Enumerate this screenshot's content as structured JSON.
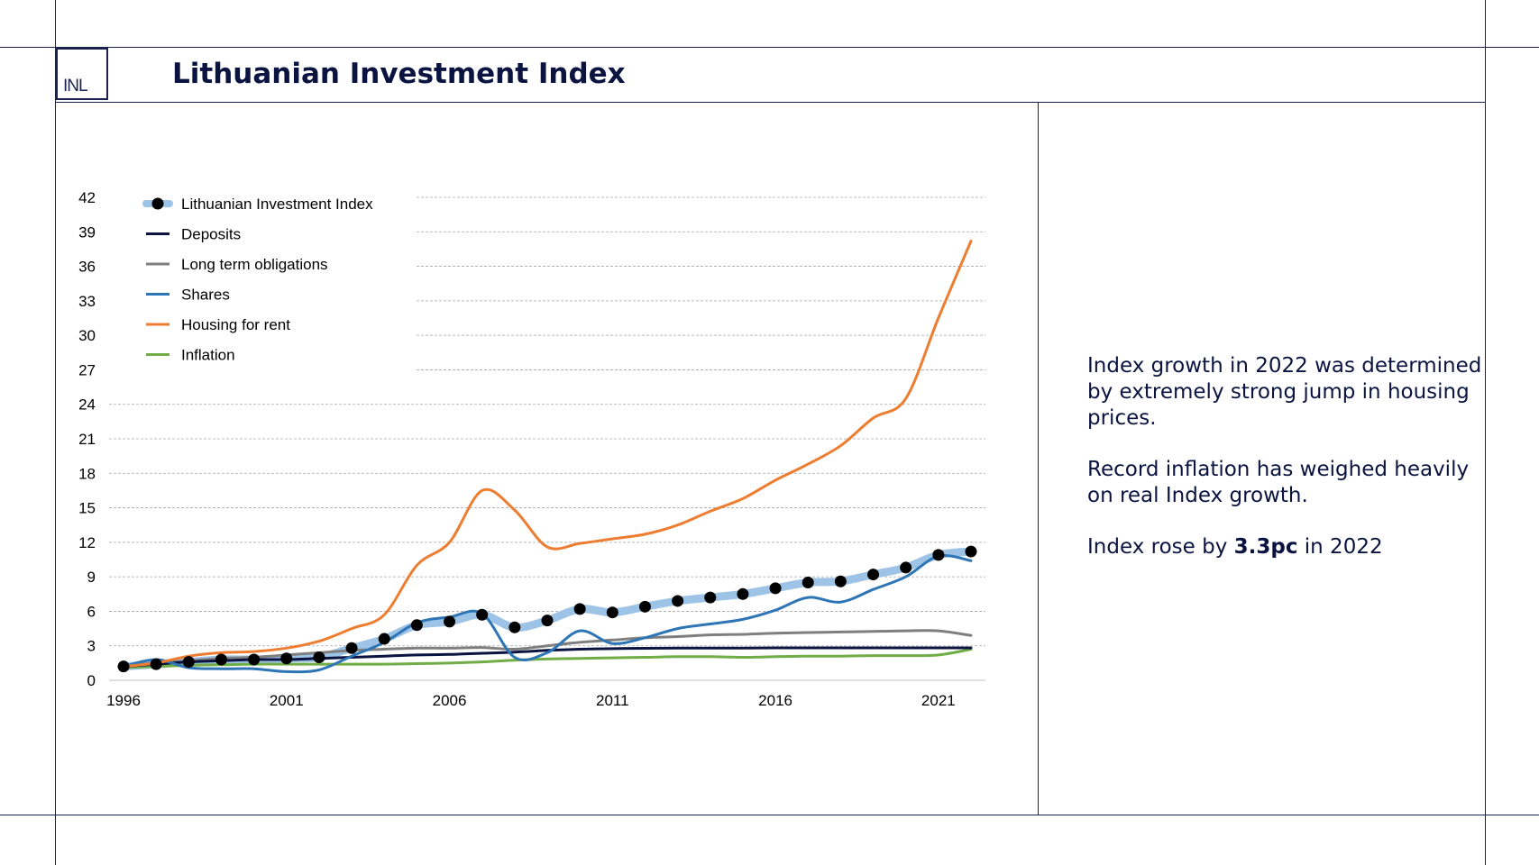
{
  "logo": {
    "text": "INL"
  },
  "title": "Lithuanian Investment Index",
  "side_text": {
    "p1": "Index growth in 2022 was determined by extremely strong jump in housing prices.",
    "p2": "Record inflation has weighed heavily on real Index growth.",
    "p3_pre": "Index rose by ",
    "p3_bold": "3.3pc",
    "p3_post": " in 2022"
  },
  "chart_data": {
    "type": "line",
    "title": "",
    "xlabel": "",
    "ylabel": "",
    "xlim": [
      1996,
      2022
    ],
    "ylim": [
      0,
      42
    ],
    "yticks": [
      0,
      3,
      6,
      9,
      12,
      15,
      18,
      21,
      24,
      27,
      30,
      33,
      36,
      39,
      42
    ],
    "xticks": [
      1996,
      2001,
      2006,
      2011,
      2016,
      2021
    ],
    "grid": "horizontal dashed",
    "legend": "top-left",
    "x": [
      1996,
      1997,
      1998,
      1999,
      2000,
      2001,
      2002,
      2003,
      2004,
      2005,
      2006,
      2007,
      2008,
      2009,
      2010,
      2011,
      2012,
      2013,
      2014,
      2015,
      2016,
      2017,
      2018,
      2019,
      2020,
      2021,
      2022
    ],
    "series": [
      {
        "name": "Lithuanian Investment Index",
        "color": "#000000",
        "band_color": "#9dc3e6",
        "style": "dots-on-band",
        "values": [
          1.2,
          1.4,
          1.6,
          1.8,
          1.8,
          1.9,
          2.0,
          2.8,
          3.6,
          4.8,
          5.1,
          5.7,
          4.6,
          5.2,
          6.2,
          5.9,
          6.4,
          6.9,
          7.2,
          7.5,
          8.0,
          8.5,
          8.6,
          9.2,
          9.8,
          10.9,
          11.2
        ]
      },
      {
        "name": "Deposits",
        "color": "#0b1340",
        "style": "line",
        "values": [
          1.2,
          1.4,
          1.6,
          1.7,
          1.8,
          1.8,
          1.9,
          2.0,
          2.1,
          2.2,
          2.25,
          2.35,
          2.45,
          2.6,
          2.7,
          2.75,
          2.78,
          2.8,
          2.8,
          2.8,
          2.82,
          2.82,
          2.82,
          2.82,
          2.82,
          2.82,
          2.82
        ]
      },
      {
        "name": "Long term obligations",
        "color": "#7f7f7f",
        "style": "line",
        "values": [
          1.3,
          1.5,
          1.7,
          1.9,
          2.0,
          2.2,
          2.4,
          2.6,
          2.7,
          2.8,
          2.8,
          2.85,
          2.7,
          3.0,
          3.3,
          3.5,
          3.7,
          3.8,
          3.95,
          4.0,
          4.1,
          4.15,
          4.2,
          4.25,
          4.3,
          4.3,
          3.9
        ]
      },
      {
        "name": "Shares",
        "color": "#2e75b6",
        "style": "line",
        "values": [
          1.2,
          1.8,
          1.1,
          1.0,
          1.0,
          0.75,
          0.9,
          2.1,
          3.3,
          5.0,
          5.5,
          5.8,
          2.0,
          2.4,
          4.3,
          3.2,
          3.7,
          4.5,
          4.9,
          5.3,
          6.1,
          7.2,
          6.8,
          7.9,
          9.0,
          10.8,
          10.4
        ]
      },
      {
        "name": "Housing for rent",
        "color": "#ed7d31",
        "style": "line",
        "values": [
          1.2,
          1.5,
          2.1,
          2.4,
          2.5,
          2.8,
          3.4,
          4.5,
          5.7,
          10.0,
          12.0,
          16.5,
          14.8,
          11.6,
          11.9,
          12.3,
          12.7,
          13.5,
          14.7,
          15.8,
          17.4,
          18.8,
          20.4,
          22.8,
          24.5,
          31.5,
          38.2
        ]
      },
      {
        "name": "Inflation",
        "color": "#70ad47",
        "style": "line",
        "values": [
          1.1,
          1.2,
          1.3,
          1.35,
          1.4,
          1.4,
          1.4,
          1.4,
          1.4,
          1.45,
          1.5,
          1.6,
          1.75,
          1.85,
          1.9,
          1.95,
          2.0,
          2.05,
          2.05,
          2.0,
          2.05,
          2.1,
          2.1,
          2.15,
          2.15,
          2.2,
          2.7
        ]
      }
    ]
  }
}
